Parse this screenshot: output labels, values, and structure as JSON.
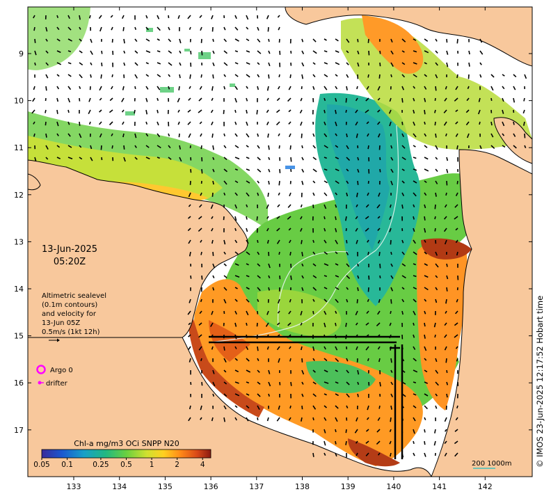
{
  "map": {
    "date_line": "13-Jun-2025",
    "time_line": "05:20Z",
    "altimetry_note": [
      "Altimetric sealevel",
      "(0.1m contours)",
      "and velocity for",
      "13-Jun 05Z",
      "0.5m/s (1kt 12h)"
    ],
    "legend": {
      "argo_label": "Argo 0",
      "drifter_label": "drifter",
      "argo_color": "#ff00ff",
      "drifter_color": "#ff00ff"
    },
    "colorbar": {
      "title": "Chl-a mg/m3 OCi SNPP N20",
      "tick_labels": [
        "0.05",
        "0.1",
        "0.25",
        "0.5",
        "1",
        "2",
        "4"
      ]
    },
    "scale_bar": {
      "label": "200  1000m",
      "color": "#40c0c0"
    },
    "credit": "© IMOS 23-Jun-2025 12:17:52 Hobart time",
    "x_axis_labels": [
      "133",
      "134",
      "135",
      "136",
      "137",
      "138",
      "139",
      "140",
      "141",
      "142"
    ],
    "y_axis_labels": [
      "9",
      "10",
      "11",
      "12",
      "13",
      "14",
      "15",
      "16",
      "17"
    ],
    "colors": {
      "land": "#f8c89c",
      "coast_line": "#000000",
      "high_chl": "#c84a1a",
      "mid_chl": "#ffd24a",
      "low_chl": "#38c878",
      "ocean_clear": "#ffffff"
    }
  }
}
